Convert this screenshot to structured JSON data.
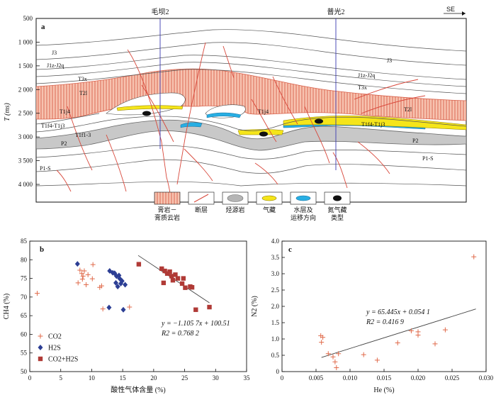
{
  "section": {
    "panel_label": "a",
    "orientation": "SE",
    "y_axis_label": "T (ms)",
    "y_ticks": [
      500,
      1000,
      1500,
      2000,
      2500,
      3000,
      3500,
      4000
    ],
    "wells": [
      "毛坝2",
      "普光2"
    ],
    "strata_labels": [
      "J3",
      "J1z-J2q",
      "T3x",
      "T2l",
      "T1j4",
      "T1f4-T1j3",
      "T1f1-3",
      "P2",
      "P1-S",
      "J3",
      "J1z-J2q",
      "T3x",
      "T2l",
      "T1j4",
      "T1f4-T1j3",
      "P2",
      "P1-S"
    ],
    "legend": [
      {
        "icon": "gypsum-hatch",
        "label_1": "膏岩－",
        "label_2": "膏质云岩"
      },
      {
        "icon": "fault-arrow",
        "label_1": "断层",
        "label_2": ""
      },
      {
        "icon": "source-rock",
        "label_1": "烃源岩",
        "label_2": ""
      },
      {
        "icon": "gas-reservoir",
        "label_1": "气藏",
        "label_2": ""
      },
      {
        "icon": "water-layer",
        "label_1": "水层及",
        "label_2": "运移方向"
      },
      {
        "icon": "nitrogen-reservoir-type",
        "label_1": "氮气藏",
        "label_2": "类型"
      }
    ]
  },
  "chart_data": [
    {
      "panel": "b",
      "type": "scatter",
      "xlabel": "酸性气体含量 (%)",
      "ylabel": "CH4 (%)",
      "xlim": [
        0,
        35
      ],
      "ylim": [
        50,
        85
      ],
      "x_ticks": [
        0,
        5,
        10,
        15,
        20,
        25,
        30,
        35
      ],
      "y_ticks": [
        50,
        55,
        60,
        65,
        70,
        75,
        80,
        85
      ],
      "equation": "y = −1.105 7x + 100.51",
      "r2": "R2 = 0.768 2",
      "trendline": {
        "x": [
          17.5,
          29.0
        ],
        "y": [
          81.16,
          68.44
        ]
      },
      "series": [
        {
          "name": "CO2",
          "marker": "plus",
          "color": "#e06a4a",
          "points": [
            [
              1.2,
              71.0
            ],
            [
              7.8,
              73.8
            ],
            [
              8.1,
              77.2
            ],
            [
              8.4,
              76.3
            ],
            [
              8.6,
              75.6
            ],
            [
              8.8,
              77.0
            ],
            [
              8.5,
              74.8
            ],
            [
              9.1,
              73.3
            ],
            [
              9.4,
              76.0
            ],
            [
              10.1,
              74.9
            ],
            [
              10.2,
              78.7
            ],
            [
              11.3,
              72.6
            ],
            [
              11.6,
              73.0
            ],
            [
              11.8,
              66.8
            ],
            [
              16.1,
              67.3
            ]
          ]
        },
        {
          "name": "H2S",
          "marker": "diamond",
          "color": "#2c3e94",
          "points": [
            [
              7.7,
              78.9
            ],
            [
              12.8,
              67.2
            ],
            [
              12.9,
              77.0
            ],
            [
              13.4,
              76.5
            ],
            [
              13.7,
              76.4
            ],
            [
              13.9,
              73.8
            ],
            [
              14.0,
              75.6
            ],
            [
              14.2,
              72.8
            ],
            [
              14.4,
              75.8
            ],
            [
              14.5,
              75.0
            ],
            [
              14.7,
              73.6
            ],
            [
              14.9,
              74.3
            ],
            [
              15.1,
              66.6
            ],
            [
              15.4,
              73.3
            ]
          ]
        },
        {
          "name": "CO2+H2S",
          "marker": "square",
          "color": "#b03a36",
          "points": [
            [
              17.6,
              78.8
            ],
            [
              21.3,
              77.6
            ],
            [
              21.6,
              73.8
            ],
            [
              21.8,
              77.0
            ],
            [
              22.2,
              76.3
            ],
            [
              22.6,
              76.8
            ],
            [
              22.9,
              75.6
            ],
            [
              23.1,
              74.5
            ],
            [
              23.5,
              76.0
            ],
            [
              23.9,
              75.0
            ],
            [
              24.6,
              73.6
            ],
            [
              24.8,
              75.0
            ],
            [
              25.1,
              72.5
            ],
            [
              25.9,
              72.8
            ],
            [
              26.2,
              72.6
            ],
            [
              26.8,
              66.6
            ],
            [
              29.0,
              67.3
            ]
          ]
        }
      ]
    },
    {
      "panel": "c",
      "type": "scatter",
      "xlabel": "He (%)",
      "ylabel": "N2 (%)",
      "xlim": [
        0,
        0.03
      ],
      "ylim": [
        0,
        4.0
      ],
      "x_ticks": [
        "0",
        "0.005",
        "0.010",
        "0.015",
        "0.020",
        "0.025",
        "0.030"
      ],
      "x_tick_vals": [
        0,
        0.005,
        0.01,
        0.015,
        0.02,
        0.025,
        0.03
      ],
      "y_ticks": [
        "0",
        "0.5",
        "1.0",
        "1.5",
        "2.0",
        "2.5",
        "3.0",
        "3.5",
        "4.0"
      ],
      "y_tick_vals": [
        0,
        0.5,
        1.0,
        1.5,
        2.0,
        2.5,
        3.0,
        3.5,
        4.0
      ],
      "equation": "y = 65.445x + 0.054 1",
      "r2": "R2 = 0.416 9",
      "trendline": {
        "x": [
          0.0058,
          0.0285
        ],
        "y": [
          0.434,
          1.92
        ]
      },
      "series": [
        {
          "name": "",
          "marker": "plus",
          "color": "#e06a4a",
          "points": [
            [
              0.0057,
              1.1
            ],
            [
              0.0058,
              0.9
            ],
            [
              0.006,
              1.05
            ],
            [
              0.0068,
              0.55
            ],
            [
              0.0075,
              0.45
            ],
            [
              0.0078,
              0.3
            ],
            [
              0.008,
              0.12
            ],
            [
              0.0083,
              0.55
            ],
            [
              0.012,
              0.52
            ],
            [
              0.014,
              0.35
            ],
            [
              0.017,
              0.88
            ],
            [
              0.019,
              1.25
            ],
            [
              0.02,
              1.12
            ],
            [
              0.02,
              1.22
            ],
            [
              0.0225,
              0.85
            ],
            [
              0.024,
              1.28
            ],
            [
              0.0282,
              3.52
            ]
          ]
        }
      ]
    }
  ]
}
